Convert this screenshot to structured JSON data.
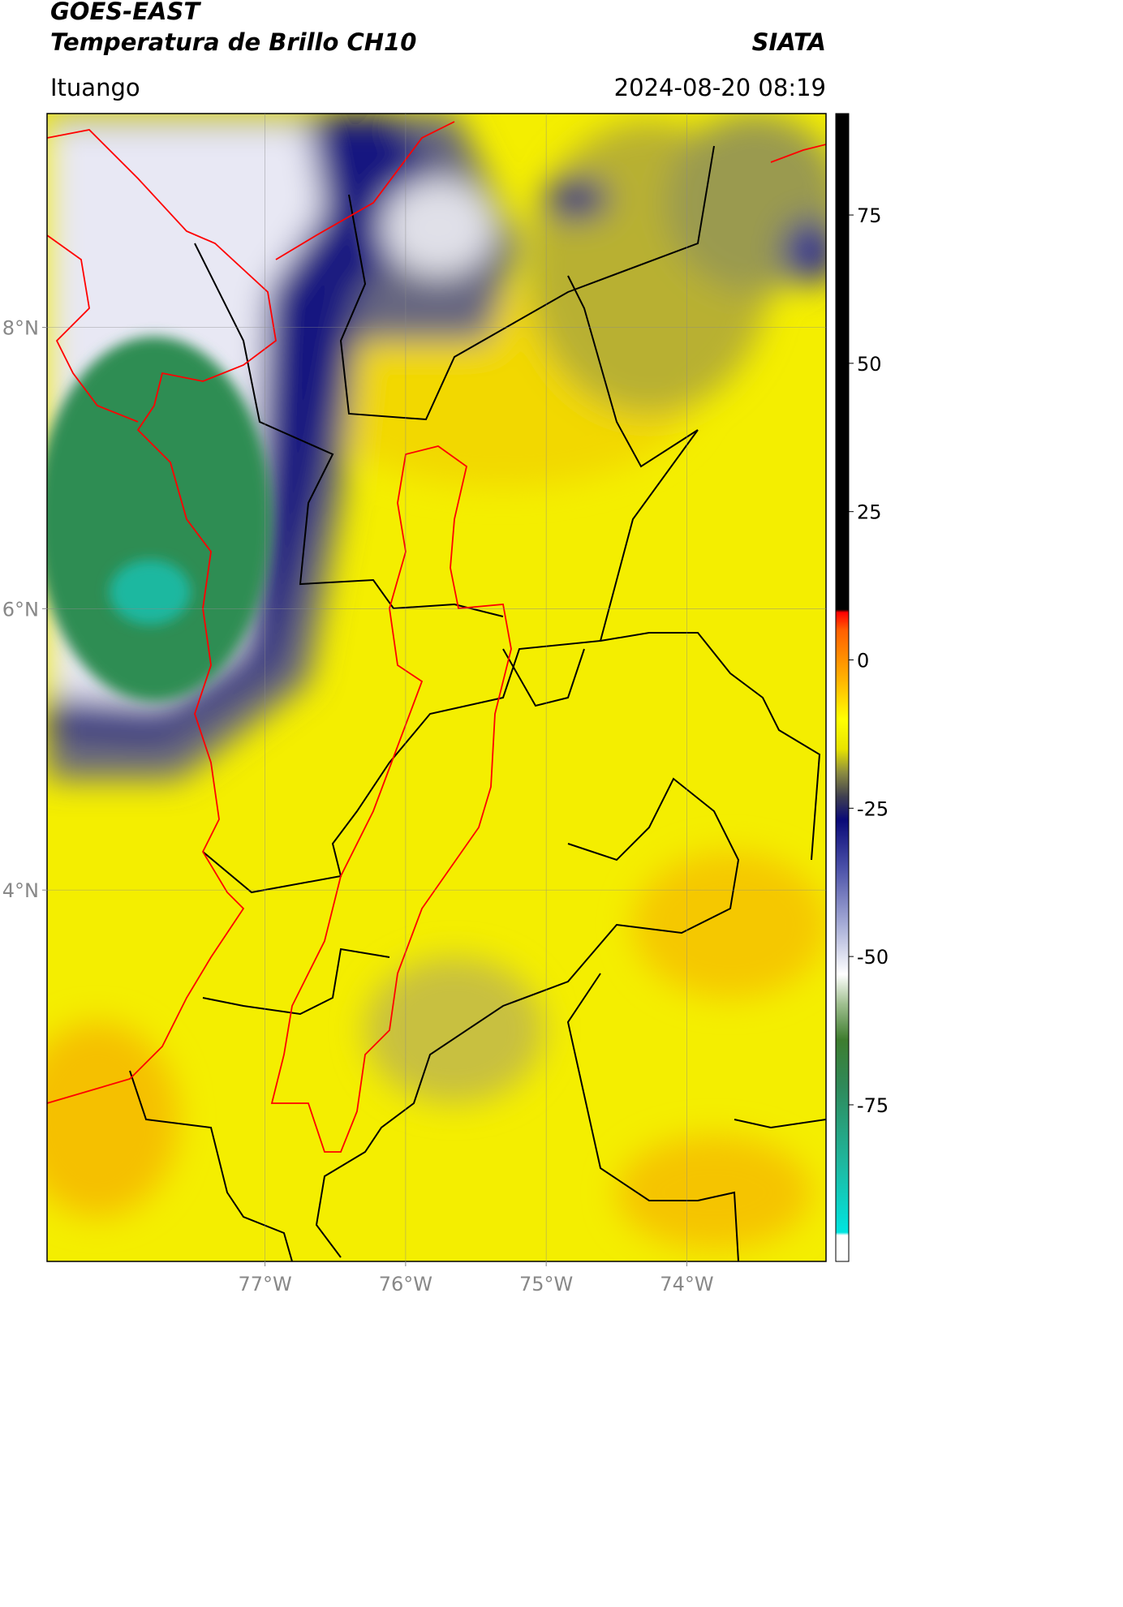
{
  "chart_data": {
    "type": "map",
    "title": "GOES-EAST",
    "subtitle": "Temperatura de Brillo CH10",
    "source": "SIATA",
    "region": "Ituango",
    "datetime": "2024-08-20 08:19",
    "xlim": [
      -78.55,
      -73.01
    ],
    "ylim": [
      1.36,
      9.52
    ],
    "xticks": [
      {
        "value": -77,
        "label": "77°W"
      },
      {
        "value": -76,
        "label": "76°W"
      },
      {
        "value": -75,
        "label": "75°W"
      },
      {
        "value": -74,
        "label": "74°W"
      }
    ],
    "yticks": [
      {
        "value": 8,
        "label": "8°N"
      },
      {
        "value": 6,
        "label": "6°N"
      },
      {
        "value": 4,
        "label": "4°N"
      }
    ],
    "grid": true,
    "colorbar": {
      "clim": [
        -101.4,
        92.1
      ],
      "ticks": [
        75,
        50,
        25,
        0,
        -25,
        -50,
        -75
      ],
      "stops": [
        {
          "value": -101.4,
          "color": "#ffffff"
        },
        {
          "value": -97,
          "color": "#ffffff"
        },
        {
          "value": -96.5,
          "color": "#00e5e0"
        },
        {
          "value": -85,
          "color": "#1fb8a0"
        },
        {
          "value": -72,
          "color": "#2f8a5a"
        },
        {
          "value": -64,
          "color": "#3e7d2f"
        },
        {
          "value": -58,
          "color": "#a0c090"
        },
        {
          "value": -53,
          "color": "#ffffff"
        },
        {
          "value": -45,
          "color": "#aab0d8"
        },
        {
          "value": -35,
          "color": "#4a50a8"
        },
        {
          "value": -27,
          "color": "#0a0a78"
        },
        {
          "value": -23,
          "color": "#404050"
        },
        {
          "value": -19,
          "color": "#8c8c40"
        },
        {
          "value": -15,
          "color": "#e8e400"
        },
        {
          "value": -10,
          "color": "#ffff00"
        },
        {
          "value": -3,
          "color": "#ffb000"
        },
        {
          "value": 5,
          "color": "#ff6000"
        },
        {
          "value": 8,
          "color": "#ff0000"
        },
        {
          "value": 8.5,
          "color": "#000000"
        },
        {
          "value": 92.1,
          "color": "#000000"
        }
      ]
    }
  }
}
